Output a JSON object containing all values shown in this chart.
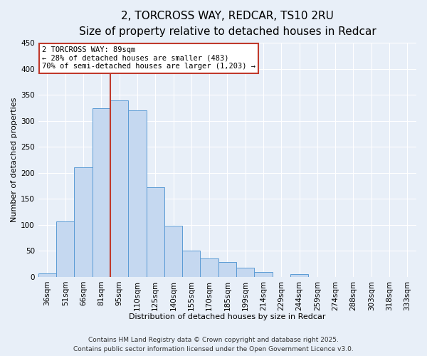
{
  "title": "2, TORCROSS WAY, REDCAR, TS10 2RU",
  "subtitle": "Size of property relative to detached houses in Redcar",
  "xlabel": "Distribution of detached houses by size in Redcar",
  "ylabel": "Number of detached properties",
  "bar_labels": [
    "36sqm",
    "51sqm",
    "66sqm",
    "81sqm",
    "95sqm",
    "110sqm",
    "125sqm",
    "140sqm",
    "155sqm",
    "170sqm",
    "185sqm",
    "199sqm",
    "214sqm",
    "229sqm",
    "244sqm",
    "259sqm",
    "274sqm",
    "288sqm",
    "303sqm",
    "318sqm",
    "333sqm"
  ],
  "bar_values": [
    6,
    107,
    211,
    325,
    340,
    320,
    172,
    98,
    50,
    36,
    29,
    17,
    9,
    0,
    5,
    0,
    0,
    0,
    0,
    0,
    0
  ],
  "bar_color": "#c5d8f0",
  "bar_edge_color": "#5b9bd5",
  "annotation_title": "2 TORCROSS WAY: 89sqm",
  "annotation_line1": "← 28% of detached houses are smaller (483)",
  "annotation_line2": "70% of semi-detached houses are larger (1,203) →",
  "annotation_box_color": "#ffffff",
  "annotation_box_edge": "#c0392b",
  "vline_color": "#c0392b",
  "vline_x_index": 3.5,
  "ylim": [
    0,
    450
  ],
  "yticks": [
    0,
    50,
    100,
    150,
    200,
    250,
    300,
    350,
    400,
    450
  ],
  "footer1": "Contains HM Land Registry data © Crown copyright and database right 2025.",
  "footer2": "Contains public sector information licensed under the Open Government Licence v3.0.",
  "background_color": "#e8eff8",
  "plot_bg_color": "#e8eff8",
  "grid_color": "#ffffff",
  "title_fontsize": 11,
  "subtitle_fontsize": 9,
  "axis_label_fontsize": 8,
  "tick_fontsize": 7.5,
  "footer_fontsize": 6.5,
  "annot_fontsize": 7.5
}
